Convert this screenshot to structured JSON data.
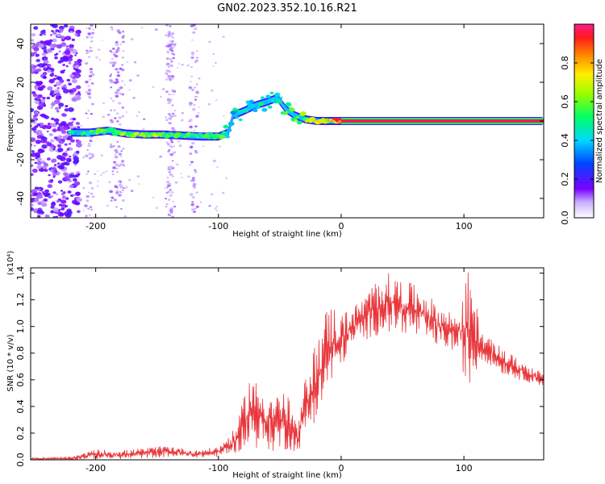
{
  "title": "GN02.2023.352.10.16.R21",
  "chart_data": [
    {
      "type": "heatmap",
      "title": "GN02.2023.352.10.16.R21",
      "xlabel": "Height of straight line (km)",
      "ylabel": "Frequency (Hz)",
      "xlim": [
        -253,
        165
      ],
      "ylim": [
        -50,
        50
      ],
      "x_ticks": [
        -200,
        -100,
        0,
        100
      ],
      "x_tick_labels": [
        "-200",
        "-100",
        "0",
        "100"
      ],
      "y_ticks": [
        -40,
        -20,
        0,
        20,
        40
      ],
      "y_tick_labels": [
        "-40",
        "-20",
        "0",
        "20",
        "40"
      ],
      "colorbar": {
        "label": "Normalized spectral amplitude",
        "range": [
          0,
          1
        ],
        "ticks": [
          0.0,
          0.2,
          0.4,
          0.6,
          0.8
        ],
        "tick_labels": [
          "0.0",
          "0.2",
          "0.4",
          "0.6",
          "0.8"
        ]
      },
      "ridge": [
        {
          "x": -220,
          "freq": -6,
          "amp": 0.45
        },
        {
          "x": -205,
          "freq": -6,
          "amp": 0.55
        },
        {
          "x": -190,
          "freq": -5,
          "amp": 0.6
        },
        {
          "x": -175,
          "freq": -6.5,
          "amp": 0.65
        },
        {
          "x": -160,
          "freq": -7,
          "amp": 0.7
        },
        {
          "x": -145,
          "freq": -7,
          "amp": 0.6
        },
        {
          "x": -130,
          "freq": -7.5,
          "amp": 0.55
        },
        {
          "x": -115,
          "freq": -8,
          "amp": 0.6
        },
        {
          "x": -100,
          "freq": -8,
          "amp": 0.6
        },
        {
          "x": -92,
          "freq": -6,
          "amp": 0.5
        },
        {
          "x": -88,
          "freq": 3,
          "amp": 0.45
        },
        {
          "x": -80,
          "freq": 5,
          "amp": 0.5
        },
        {
          "x": -70,
          "freq": 8,
          "amp": 0.45
        },
        {
          "x": -60,
          "freq": 10,
          "amp": 0.5
        },
        {
          "x": -52,
          "freq": 12,
          "amp": 0.45
        },
        {
          "x": -45,
          "freq": 6,
          "amp": 0.55
        },
        {
          "x": -38,
          "freq": 3,
          "amp": 0.6
        },
        {
          "x": -30,
          "freq": 1,
          "amp": 0.7
        },
        {
          "x": -20,
          "freq": 0,
          "amp": 0.8
        },
        {
          "x": -10,
          "freq": 0,
          "amp": 0.85
        },
        {
          "x": 0,
          "freq": 0,
          "amp": 0.9
        },
        {
          "x": 165,
          "freq": 0,
          "amp": 0.9
        }
      ]
    },
    {
      "type": "line",
      "xlabel": "Height of straight line (km)",
      "ylabel": "SNR (10 * v/v)",
      "y_scale_label": "(x10⁴)",
      "xlim": [
        -253,
        165
      ],
      "ylim": [
        0,
        14400
      ],
      "x_ticks": [
        -200,
        -100,
        0,
        100
      ],
      "x_tick_labels": [
        "-200",
        "-100",
        "0",
        "100"
      ],
      "y_ticks": [
        0,
        2000,
        4000,
        6000,
        8000,
        10000,
        12000,
        14000
      ],
      "y_tick_labels": [
        "0.0",
        "0.2",
        "0.4",
        "0.6",
        "0.8",
        "1.0",
        "1.2",
        "1.4"
      ],
      "series": [
        {
          "name": "SNR",
          "color": "#e8353a",
          "envelope": [
            {
              "x": -253,
              "lo": 0,
              "hi": 150
            },
            {
              "x": -220,
              "lo": 0,
              "hi": 200
            },
            {
              "x": -200,
              "lo": 50,
              "hi": 800
            },
            {
              "x": -180,
              "lo": 50,
              "hi": 700
            },
            {
              "x": -160,
              "lo": 100,
              "hi": 900
            },
            {
              "x": -140,
              "lo": 200,
              "hi": 1100
            },
            {
              "x": -120,
              "lo": 150,
              "hi": 700
            },
            {
              "x": -100,
              "lo": 200,
              "hi": 1000
            },
            {
              "x": -85,
              "lo": 500,
              "hi": 2500
            },
            {
              "x": -75,
              "lo": 1000,
              "hi": 6500
            },
            {
              "x": -65,
              "lo": 800,
              "hi": 5500
            },
            {
              "x": -55,
              "lo": 600,
              "hi": 5000
            },
            {
              "x": -45,
              "lo": 700,
              "hi": 5200
            },
            {
              "x": -35,
              "lo": 600,
              "hi": 2500
            },
            {
              "x": -28,
              "lo": 2000,
              "hi": 7000
            },
            {
              "x": -20,
              "lo": 3000,
              "hi": 9000
            },
            {
              "x": -10,
              "lo": 5000,
              "hi": 12000
            },
            {
              "x": 0,
              "lo": 7000,
              "hi": 11000
            },
            {
              "x": 10,
              "lo": 8500,
              "hi": 11500
            },
            {
              "x": 20,
              "lo": 9000,
              "hi": 12500
            },
            {
              "x": 35,
              "lo": 9500,
              "hi": 14200
            },
            {
              "x": 50,
              "lo": 9500,
              "hi": 13500
            },
            {
              "x": 65,
              "lo": 9000,
              "hi": 13000
            },
            {
              "x": 80,
              "lo": 8500,
              "hi": 11500
            },
            {
              "x": 95,
              "lo": 8000,
              "hi": 11000
            },
            {
              "x": 104,
              "lo": 5000,
              "hi": 14400
            },
            {
              "x": 115,
              "lo": 7500,
              "hi": 9500
            },
            {
              "x": 130,
              "lo": 6500,
              "hi": 8500
            },
            {
              "x": 145,
              "lo": 6000,
              "hi": 7500
            },
            {
              "x": 165,
              "lo": 5500,
              "hi": 6500
            }
          ]
        }
      ]
    }
  ]
}
